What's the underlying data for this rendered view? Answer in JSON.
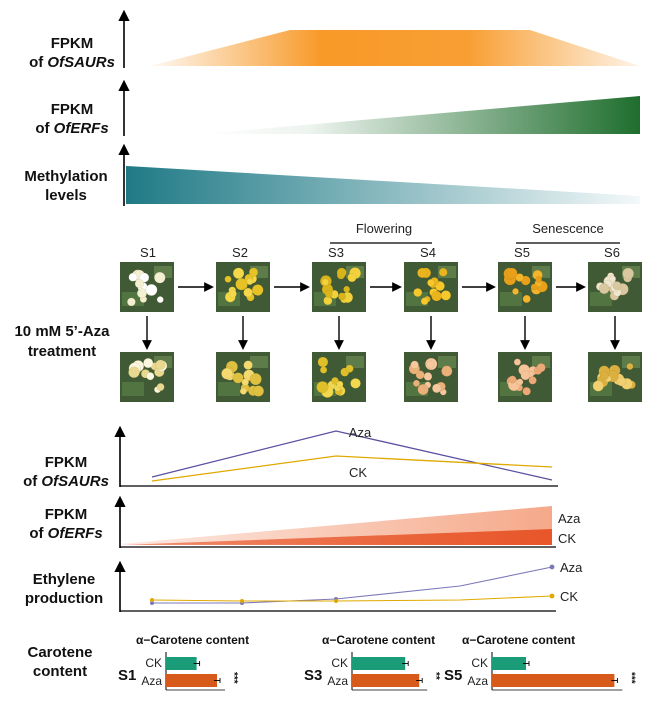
{
  "top_panels": [
    {
      "label_line1": "FPKM",
      "label_line2_prefix": "of ",
      "label_line2_gene": "OfSAURs",
      "color": "#f7941d"
    },
    {
      "label_line1": "FPKM",
      "label_line2_prefix": "of ",
      "label_line2_gene": "OfERFs",
      "color": "#1f6e2e"
    },
    {
      "label_line1": "Methylation",
      "label_line2": "levels",
      "color": "#1f7a86"
    }
  ],
  "stages": [
    "S1",
    "S2",
    "S3",
    "S4",
    "S5",
    "S6"
  ],
  "phases": {
    "flowering": "Flowering",
    "senescence": "Senescence"
  },
  "treatment": {
    "line1": "10 mM 5’-Aza",
    "line2": "treatment"
  },
  "bottom_panels": {
    "saurs": {
      "label_line1": "FPKM",
      "label_line2_prefix": "of ",
      "label_line2_gene": "OfSAURs",
      "aza_label": "Aza",
      "ck_label": "CK",
      "aza_color": "#5b4fa0",
      "ck_color": "#e0a800"
    },
    "erfs": {
      "label_line1": "FPKM",
      "label_line2_prefix": "of ",
      "label_line2_gene": "OfERFs",
      "aza_label": "Aza",
      "ck_label": "CK",
      "aza_color": "#f5a98a",
      "ck_color": "#e8562a"
    },
    "ethylene": {
      "label_line1": "Ethylene",
      "label_line2": "production",
      "aza_label": "Aza",
      "ck_label": "CK",
      "aza_color": "#7b78b8",
      "ck_color": "#e0a800"
    }
  },
  "carotene": {
    "label_line1": "Carotene",
    "label_line2": "content",
    "ck_color": "#1a9c78",
    "aza_color": "#d85a1a",
    "panels": [
      {
        "stage": "S1",
        "title": "α−Carotene content",
        "ck": 0.18,
        "aza": 0.3,
        "sig": "***",
        "ck_label": "CK",
        "aza_label": "Aza"
      },
      {
        "stage": "S3",
        "title": "α−Carotene content",
        "ck": 0.38,
        "aza": 0.48,
        "sig": "**",
        "ck_label": "CK",
        "aza_label": "Aza"
      },
      {
        "stage": "S5",
        "title": "α−Carotene content",
        "ck": 0.2,
        "aza": 0.72,
        "sig": "***",
        "ck_label": "CK",
        "aza_label": "Aza"
      }
    ]
  }
}
